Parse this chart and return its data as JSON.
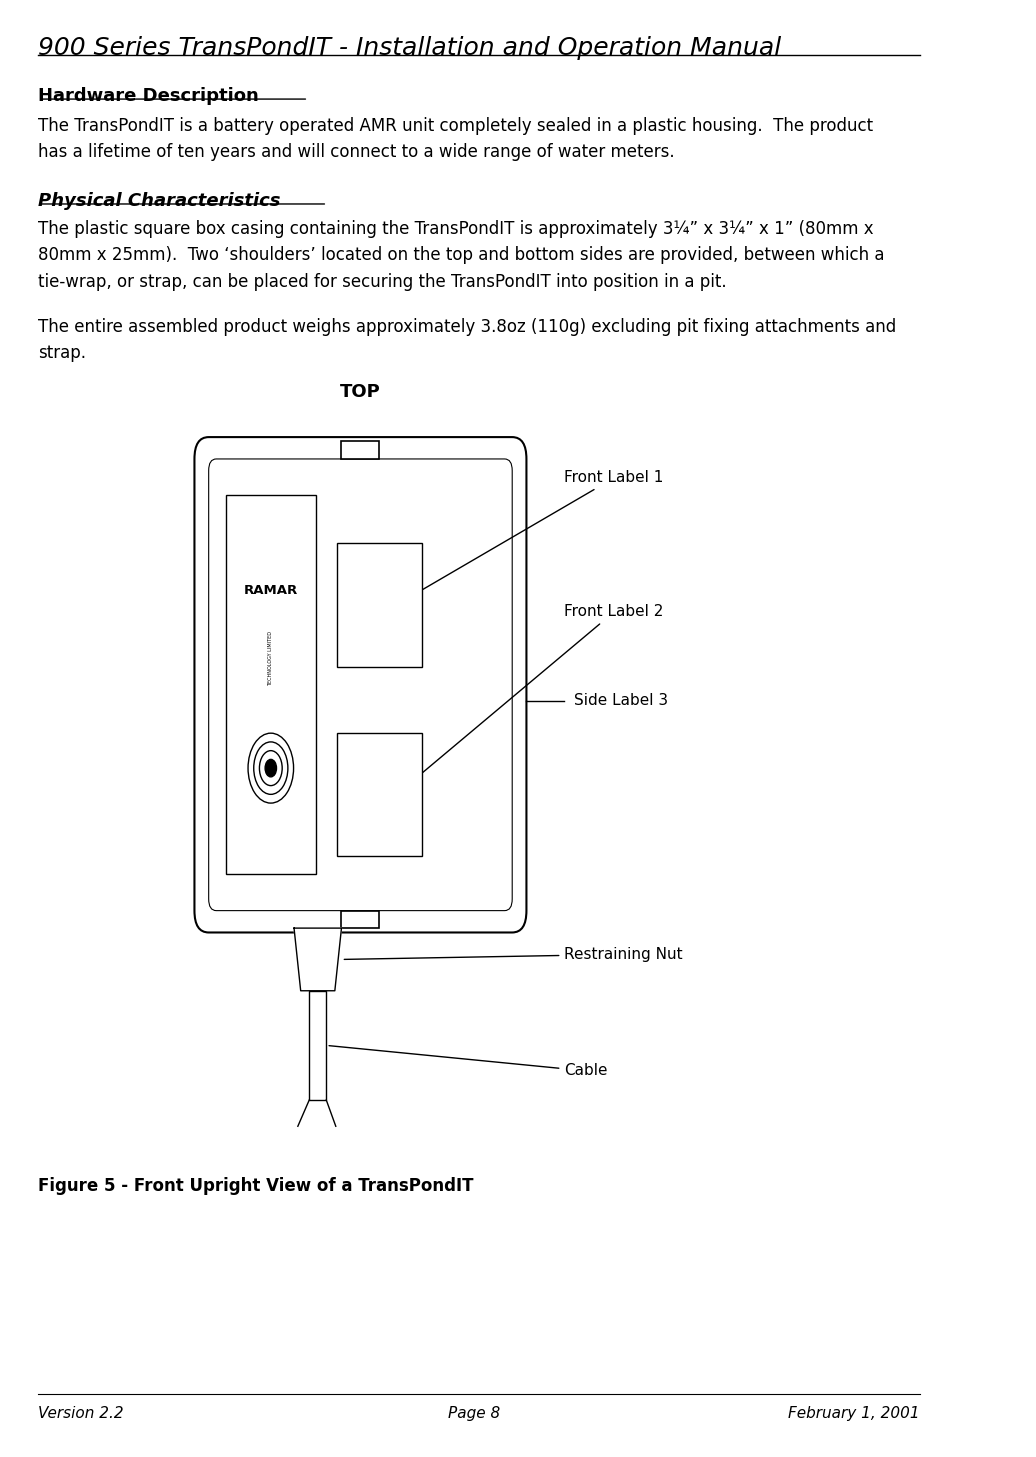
{
  "title": "900 Series TransPondIT - Installation and Operation Manual",
  "section1_title": "Hardware Description",
  "section1_text": "The TransPondIT is a battery operated AMR unit completely sealed in a plastic housing.  The product\nhas a lifetime of ten years and will connect to a wide range of water meters.",
  "section2_title": "Physical Characteristics",
  "section2_text1": "The plastic square box casing containing the TransPondIT is approximately 3¼” x 3¼” x 1” (80mm x\n80mm x 25mm).  Two ‘shoulders’ located on the top and bottom sides are provided, between which a\ntie-wrap, or strap, can be placed for securing the TransPondIT into position in a pit.",
  "section2_text2": "The entire assembled product weighs approximately 3.8oz (110g) excluding pit fixing attachments and\nstrap.",
  "figure_caption": "Figure 5 - Front Upright View of a TransPondIT",
  "top_label": "TOP",
  "label1": "Front Label 1",
  "label2": "Front Label 2",
  "label3": "Side Label 3",
  "label4": "Restraining Nut",
  "label5": "Cable",
  "footer_left": "Version 2.2",
  "footer_center": "Page 8",
  "footer_right": "February 1, 2001",
  "bg_color": "#ffffff",
  "text_color": "#000000"
}
